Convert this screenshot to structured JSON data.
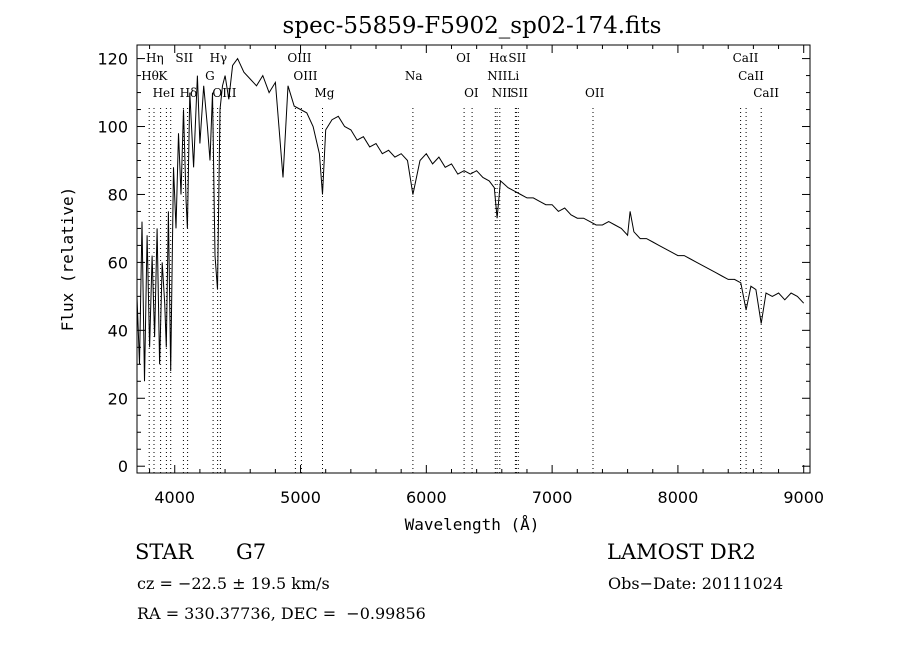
{
  "chart_data": {
    "type": "line",
    "title": "spec-55859-F5902_sp02-174.fits",
    "xlabel": "Wavelength (Å)",
    "ylabel": "Flux (relative)",
    "xlim": [
      3700,
      9050
    ],
    "ylim": [
      -2,
      124
    ],
    "xticks": [
      4000,
      5000,
      6000,
      7000,
      8000,
      9000
    ],
    "yticks": [
      0,
      20,
      40,
      60,
      80,
      100,
      120
    ],
    "grid": false,
    "series": [
      {
        "x": [
          3700,
          3720,
          3740,
          3760,
          3780,
          3800,
          3820,
          3840,
          3860,
          3880,
          3900,
          3920,
          3933,
          3950,
          3968,
          3990,
          4010,
          4030,
          4050,
          4070,
          4090,
          4101,
          4120,
          4150,
          4180,
          4200,
          4230,
          4260,
          4280,
          4300,
          4320,
          4340,
          4360,
          4380,
          4400,
          4430,
          4460,
          4500,
          4550,
          4600,
          4650,
          4700,
          4750,
          4800,
          4861,
          4900,
          4950,
          5000,
          5050,
          5100,
          5150,
          5175,
          5200,
          5250,
          5300,
          5350,
          5400,
          5450,
          5500,
          5550,
          5600,
          5650,
          5700,
          5750,
          5800,
          5850,
          5893,
          5950,
          6000,
          6050,
          6100,
          6150,
          6200,
          6250,
          6300,
          6350,
          6400,
          6450,
          6500,
          6540,
          6563,
          6590,
          6620,
          6650,
          6700,
          6750,
          6800,
          6850,
          6900,
          6950,
          7000,
          7050,
          7100,
          7150,
          7200,
          7250,
          7300,
          7350,
          7400,
          7450,
          7500,
          7550,
          7600,
          7620,
          7650,
          7700,
          7750,
          7800,
          7850,
          7900,
          7950,
          8000,
          8050,
          8100,
          8150,
          8200,
          8250,
          8300,
          8350,
          8400,
          8450,
          8500,
          8542,
          8580,
          8620,
          8662,
          8700,
          8750,
          8800,
          8850,
          8900,
          8950,
          9000
        ],
        "y": [
          50,
          30,
          72,
          25,
          68,
          35,
          62,
          38,
          70,
          30,
          60,
          48,
          35,
          75,
          28,
          88,
          70,
          98,
          80,
          105,
          78,
          70,
          110,
          88,
          115,
          95,
          112,
          100,
          90,
          110,
          62,
          52,
          105,
          112,
          115,
          108,
          118,
          120,
          116,
          114,
          112,
          115,
          110,
          113,
          85,
          112,
          106,
          105,
          104,
          100,
          92,
          80,
          99,
          102,
          103,
          100,
          99,
          96,
          97,
          94,
          95,
          92,
          93,
          91,
          92,
          90,
          80,
          90,
          92,
          89,
          91,
          88,
          89,
          86,
          87,
          86,
          87,
          85,
          84,
          82,
          73,
          84,
          83,
          82,
          81,
          80,
          79,
          79,
          78,
          77,
          77,
          75,
          76,
          74,
          73,
          73,
          72,
          71,
          71,
          72,
          71,
          70,
          68,
          75,
          69,
          67,
          67,
          66,
          65,
          64,
          63,
          62,
          62,
          61,
          60,
          59,
          58,
          57,
          56,
          55,
          55,
          54,
          46,
          53,
          52,
          42,
          51,
          50,
          51,
          49,
          51,
          50,
          48
        ]
      }
    ],
    "line_labels": [
      {
        "text": "Hη",
        "x": 3835,
        "row": 1
      },
      {
        "text": "Hθ",
        "x": 3797,
        "row": 2
      },
      {
        "text": "K",
        "x": 3934,
        "row": 2
      },
      {
        "text": "HeI",
        "x": 3888,
        "row": 3
      },
      {
        "text": "SII",
        "x": 4069,
        "row": 1
      },
      {
        "text": "Hδ",
        "x": 4102,
        "row": 3
      },
      {
        "text": "Hγ",
        "x": 4341,
        "row": 1
      },
      {
        "text": "G",
        "x": 4305,
        "row": 2
      },
      {
        "text": "OIII",
        "x": 4363,
        "row": 3
      },
      {
        "text": "OIII",
        "x": 4959,
        "row": 1
      },
      {
        "text": "OIII",
        "x": 5007,
        "row": 2
      },
      {
        "text": "Mg",
        "x": 5175,
        "row": 3
      },
      {
        "text": "Na",
        "x": 5893,
        "row": 2
      },
      {
        "text": "OI",
        "x": 6300,
        "row": 1
      },
      {
        "text": "OI",
        "x": 6364,
        "row": 3
      },
      {
        "text": "Hα",
        "x": 6563,
        "row": 1
      },
      {
        "text": "SII",
        "x": 6716,
        "row": 1
      },
      {
        "text": "NII",
        "x": 6548,
        "row": 2
      },
      {
        "text": "Li",
        "x": 6708,
        "row": 2
      },
      {
        "text": "NII",
        "x": 6584,
        "row": 3
      },
      {
        "text": "SII",
        "x": 6731,
        "row": 3
      },
      {
        "text": "OII",
        "x": 7325,
        "row": 3
      },
      {
        "text": "CaII",
        "x": 8498,
        "row": 1
      },
      {
        "text": "CaII",
        "x": 8542,
        "row": 2
      },
      {
        "text": "CaII",
        "x": 8662,
        "row": 3
      }
    ],
    "line_markers": [
      3797,
      3835,
      3888,
      3934,
      3968,
      4069,
      4102,
      4305,
      4341,
      4363,
      4959,
      5007,
      5175,
      5893,
      6300,
      6364,
      6548,
      6563,
      6584,
      6708,
      6716,
      6731,
      7325,
      8498,
      8542,
      8662
    ]
  },
  "info": {
    "object_class": "STAR",
    "subclass": "G7",
    "survey": "LAMOST DR2",
    "redshift": "cz = −22.5 ± 19.5 km/s",
    "obs_date": "Obs−Date: 20111024",
    "coords": "RA = 330.37736, DEC =  −0.99856"
  }
}
